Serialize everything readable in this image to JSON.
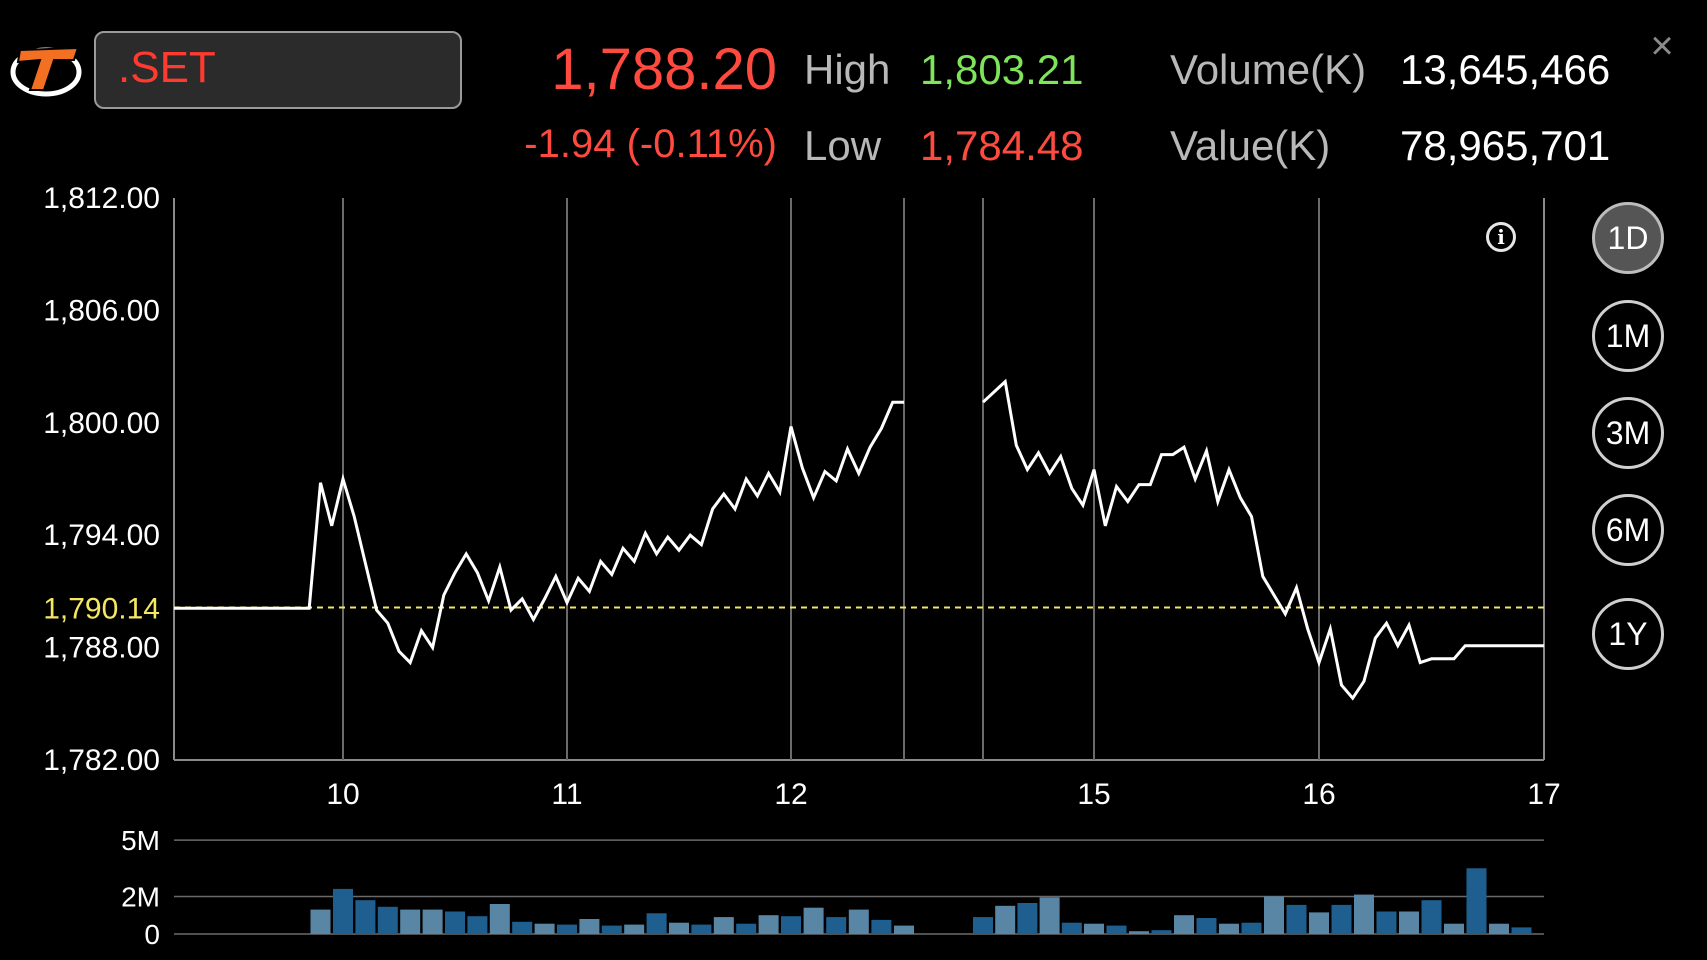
{
  "header": {
    "symbol": ".SET",
    "last_price": "1,788.20",
    "change": "-1.94 (-0.11%)",
    "high_label": "High",
    "high_value": "1,803.21",
    "low_label": "Low",
    "low_value": "1,784.48",
    "volume_label": "Volume(K)",
    "volume_value": "13,645,466",
    "value_label": "Value(K)",
    "value_value": "78,965,701",
    "close_glyph": "×"
  },
  "periods": [
    {
      "label": "1D",
      "active": true
    },
    {
      "label": "1M",
      "active": false
    },
    {
      "label": "3M",
      "active": false
    },
    {
      "label": "6M",
      "active": false
    },
    {
      "label": "1Y",
      "active": false
    }
  ],
  "icons": {
    "logo": "brand-logo-icon",
    "info": "info-icon",
    "close": "close-icon"
  },
  "info_glyph": "i",
  "colors": {
    "up": "#7ee55b",
    "down": "#ff4a3f",
    "prior_close": "#f5e663",
    "line": "#ffffff",
    "volume_light": "#5a86a6",
    "volume_dark": "#1f5f8f"
  },
  "chart_data": {
    "type": "line",
    "title": "",
    "ylim": [
      1782,
      1812
    ],
    "y_ticks": [
      "1,812.00",
      "1,806.00",
      "1,800.00",
      "1,794.00",
      "1,788.00",
      "1,782.00"
    ],
    "y_tick_values": [
      1812,
      1806,
      1800,
      1794,
      1788,
      1782
    ],
    "x_ticks": [
      "10",
      "11",
      "12",
      "15",
      "16",
      "17"
    ],
    "prior_close": 1790.14,
    "prior_close_label": "1,790.14",
    "series": [
      {
        "segments": [
          [
            [
              9.25,
              1790.1
            ],
            [
              9.85,
              1790.1
            ],
            [
              9.9,
              1796.8
            ],
            [
              9.95,
              1794.5
            ],
            [
              10.0,
              1797.0
            ],
            [
              10.05,
              1795.0
            ],
            [
              10.15,
              1790.0
            ],
            [
              10.2,
              1789.3
            ],
            [
              10.25,
              1787.8
            ],
            [
              10.3,
              1787.2
            ],
            [
              10.35,
              1788.9
            ],
            [
              10.4,
              1788.0
            ],
            [
              10.45,
              1790.8
            ],
            [
              10.5,
              1792.0
            ],
            [
              10.55,
              1793.0
            ],
            [
              10.6,
              1792.0
            ],
            [
              10.65,
              1790.5
            ],
            [
              10.7,
              1792.3
            ],
            [
              10.75,
              1790.0
            ],
            [
              10.8,
              1790.6
            ],
            [
              10.85,
              1789.5
            ],
            [
              10.9,
              1790.6
            ],
            [
              10.95,
              1791.8
            ],
            [
              11.0,
              1790.4
            ],
            [
              11.05,
              1791.7
            ],
            [
              11.1,
              1791.0
            ],
            [
              11.15,
              1792.6
            ],
            [
              11.2,
              1791.9
            ],
            [
              11.25,
              1793.3
            ],
            [
              11.3,
              1792.6
            ],
            [
              11.35,
              1794.1
            ],
            [
              11.4,
              1793.0
            ],
            [
              11.45,
              1793.9
            ],
            [
              11.5,
              1793.2
            ],
            [
              11.55,
              1794.0
            ],
            [
              11.6,
              1793.5
            ],
            [
              11.65,
              1795.4
            ],
            [
              11.7,
              1796.2
            ],
            [
              11.75,
              1795.4
            ],
            [
              11.8,
              1797.0
            ],
            [
              11.85,
              1796.1
            ],
            [
              11.9,
              1797.3
            ],
            [
              11.95,
              1796.3
            ],
            [
              12.0,
              1799.8
            ],
            [
              12.05,
              1797.6
            ],
            [
              12.1,
              1796.0
            ],
            [
              12.15,
              1797.4
            ],
            [
              12.2,
              1796.9
            ],
            [
              12.25,
              1798.6
            ],
            [
              12.3,
              1797.3
            ],
            [
              12.35,
              1798.7
            ],
            [
              12.4,
              1799.7
            ],
            [
              12.45,
              1801.1
            ],
            [
              12.5,
              1801.1
            ]
          ],
          [
            [
              14.5,
              1801.1
            ],
            [
              14.6,
              1802.2
            ],
            [
              14.65,
              1798.8
            ],
            [
              14.7,
              1797.5
            ],
            [
              14.75,
              1798.4
            ],
            [
              14.8,
              1797.3
            ],
            [
              14.85,
              1798.2
            ],
            [
              14.9,
              1796.5
            ],
            [
              14.95,
              1795.6
            ],
            [
              15.0,
              1797.5
            ],
            [
              15.05,
              1794.5
            ],
            [
              15.1,
              1796.6
            ],
            [
              15.15,
              1795.8
            ],
            [
              15.2,
              1796.7
            ],
            [
              15.25,
              1796.7
            ],
            [
              15.3,
              1798.3
            ],
            [
              15.35,
              1798.3
            ],
            [
              15.4,
              1798.7
            ],
            [
              15.45,
              1797.0
            ],
            [
              15.5,
              1798.5
            ],
            [
              15.55,
              1795.8
            ],
            [
              15.6,
              1797.5
            ],
            [
              15.65,
              1796.0
            ],
            [
              15.7,
              1795.0
            ],
            [
              15.75,
              1791.8
            ],
            [
              15.8,
              1790.8
            ],
            [
              15.85,
              1789.8
            ],
            [
              15.9,
              1791.2
            ],
            [
              15.95,
              1789.0
            ],
            [
              16.0,
              1787.2
            ],
            [
              16.05,
              1789.0
            ],
            [
              16.1,
              1786.0
            ],
            [
              16.15,
              1785.3
            ],
            [
              16.2,
              1786.2
            ],
            [
              16.25,
              1788.5
            ],
            [
              16.3,
              1789.3
            ],
            [
              16.35,
              1788.1
            ],
            [
              16.4,
              1789.2
            ],
            [
              16.45,
              1787.2
            ],
            [
              16.5,
              1787.4
            ],
            [
              16.6,
              1787.4
            ],
            [
              16.65,
              1788.1
            ],
            [
              17.0,
              1788.1
            ]
          ]
        ]
      }
    ],
    "session_breaks": [
      12.5,
      14.5
    ],
    "volume": {
      "y_ticks": [
        "5M",
        "2M",
        "0"
      ],
      "y_tick_values": [
        5,
        2,
        0
      ],
      "ylim": [
        0,
        4.9
      ],
      "unit": "M",
      "x": [
        9.9,
        10.0,
        10.1,
        10.2,
        10.3,
        10.4,
        10.5,
        10.6,
        10.7,
        10.8,
        10.9,
        11.0,
        11.1,
        11.2,
        11.3,
        11.4,
        11.5,
        11.6,
        11.7,
        11.8,
        11.9,
        12.0,
        12.1,
        12.2,
        12.3,
        12.4,
        12.5,
        14.5,
        14.6,
        14.7,
        14.8,
        14.9,
        15.0,
        15.1,
        15.2,
        15.3,
        15.4,
        15.5,
        15.6,
        15.7,
        15.8,
        15.9,
        16.0,
        16.1,
        16.2,
        16.3,
        16.4,
        16.5,
        16.6,
        16.7,
        16.8,
        16.9
      ],
      "values": [
        1.3,
        2.4,
        1.8,
        1.45,
        1.3,
        1.3,
        1.2,
        0.95,
        1.6,
        0.65,
        0.55,
        0.5,
        0.8,
        0.45,
        0.5,
        1.1,
        0.6,
        0.5,
        0.9,
        0.55,
        1.0,
        0.95,
        1.4,
        0.9,
        1.3,
        0.75,
        0.45,
        0.9,
        1.5,
        1.65,
        1.95,
        0.6,
        0.55,
        0.45,
        0.15,
        0.2,
        1.0,
        0.85,
        0.55,
        0.6,
        2.0,
        1.55,
        1.15,
        1.55,
        2.1,
        1.2,
        1.2,
        1.8,
        0.55,
        3.5,
        0.55,
        0.35
      ],
      "shade": [
        "l",
        "d",
        "d",
        "d",
        "l",
        "l",
        "d",
        "d",
        "l",
        "d",
        "l",
        "d",
        "l",
        "d",
        "l",
        "d",
        "l",
        "d",
        "l",
        "d",
        "l",
        "d",
        "l",
        "d",
        "l",
        "d",
        "l",
        "d",
        "l",
        "d",
        "l",
        "d",
        "l",
        "d",
        "l",
        "d",
        "l",
        "d",
        "l",
        "d",
        "l",
        "d",
        "l",
        "d",
        "l",
        "d",
        "l",
        "d",
        "l",
        "d",
        "l",
        "d"
      ]
    }
  }
}
